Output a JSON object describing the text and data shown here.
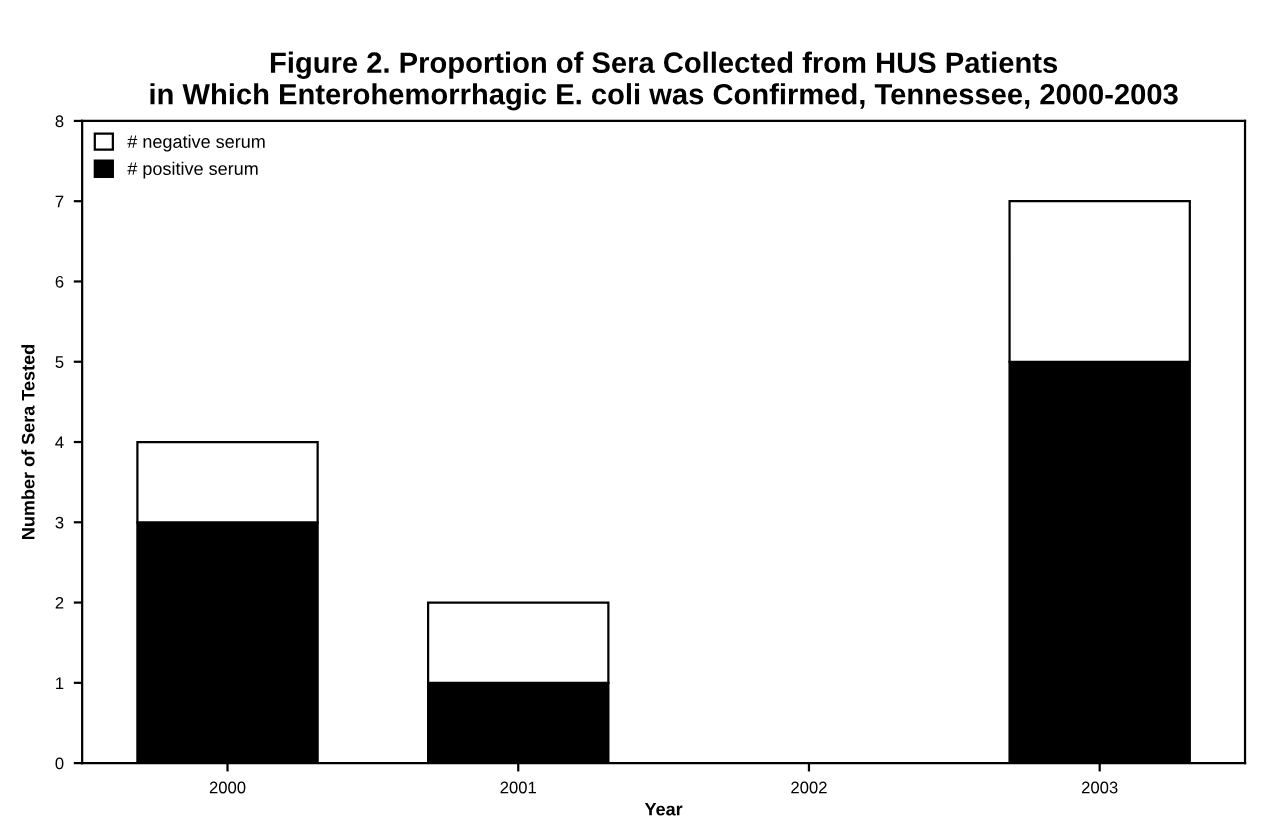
{
  "chart_data": {
    "type": "bar",
    "title": "Figure 2. Proportion of Sera Collected from HUS Patients\nin Which Enterohemorrhagic E. coli was Confirmed, Tennessee, 2000-2003",
    "xlabel": "Year",
    "ylabel": "Number of Sera Tested",
    "categories": [
      "2000",
      "2001",
      "2002",
      "2003"
    ],
    "stacked": true,
    "series": [
      {
        "name": "# positive serum",
        "color": "#000000",
        "values": [
          3,
          1,
          0,
          5
        ]
      },
      {
        "name": "# negative serum",
        "color": "#ffffff",
        "values": [
          1,
          1,
          0,
          2
        ]
      }
    ],
    "ylim": [
      0,
      8
    ],
    "yticks": [
      0,
      1,
      2,
      3,
      4,
      5,
      6,
      7,
      8
    ],
    "grid": false,
    "legend": "top left"
  }
}
